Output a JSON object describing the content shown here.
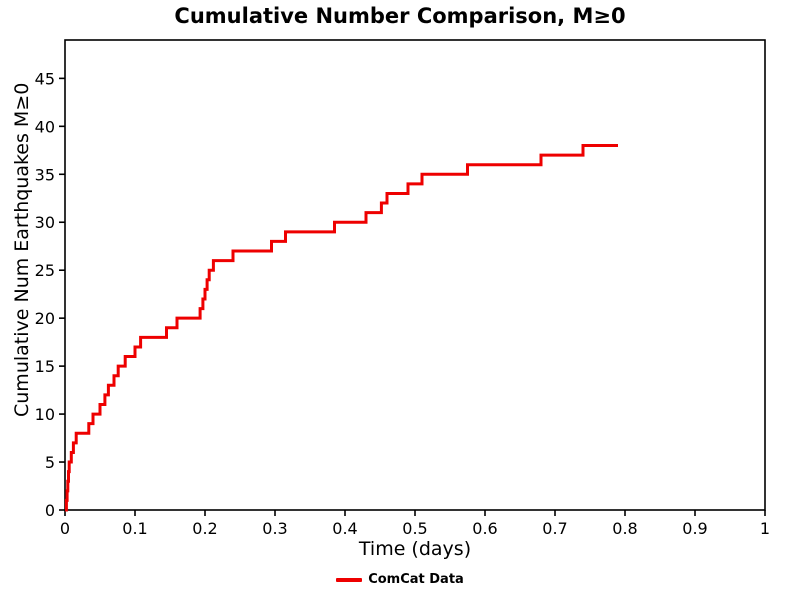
{
  "figure": {
    "background": "#ffffff",
    "text_color": "#000000"
  },
  "chart_data": {
    "type": "line",
    "subtype": "cumulative-step",
    "title": "Cumulative Number Comparison, M≥0",
    "xlabel": "Time (days)",
    "ylabel": "Cumulative Num Earthquakes M≥0",
    "xlim": [
      0,
      1
    ],
    "ylim": [
      0,
      49
    ],
    "grid": false,
    "frame": true,
    "x_ticks": {
      "values": [
        0,
        0.1,
        0.2,
        0.3,
        0.4,
        0.5,
        0.6,
        0.7,
        0.8,
        0.9,
        1
      ],
      "labels": [
        "0",
        "0.1",
        "0.2",
        "0.3",
        "0.4",
        "0.5",
        "0.6",
        "0.7",
        "0.8",
        "0.9",
        "1"
      ]
    },
    "y_ticks": {
      "values": [
        0,
        5,
        10,
        15,
        20,
        25,
        30,
        35,
        40,
        45
      ],
      "labels": [
        "0",
        "5",
        "10",
        "15",
        "20",
        "25",
        "30",
        "35",
        "40",
        "45"
      ]
    },
    "series": [
      {
        "name": "ComCat Data",
        "color": "#ee0000",
        "line_width": 3,
        "start": [
          0,
          0
        ],
        "event_times": [
          0.002,
          0.003,
          0.004,
          0.005,
          0.006,
          0.009,
          0.012,
          0.016,
          0.034,
          0.04,
          0.05,
          0.057,
          0.062,
          0.07,
          0.076,
          0.086,
          0.1,
          0.108,
          0.145,
          0.16,
          0.193,
          0.197,
          0.2,
          0.203,
          0.206,
          0.212,
          0.24,
          0.295,
          0.315,
          0.385,
          0.43,
          0.452,
          0.46,
          0.49,
          0.51,
          0.575,
          0.68,
          0.74
        ],
        "end_time": 0.79,
        "final_count": 38
      }
    ],
    "legend": {
      "position": "bottom-center",
      "entries": [
        {
          "label": "ComCat Data",
          "color": "#ee0000"
        }
      ]
    }
  }
}
